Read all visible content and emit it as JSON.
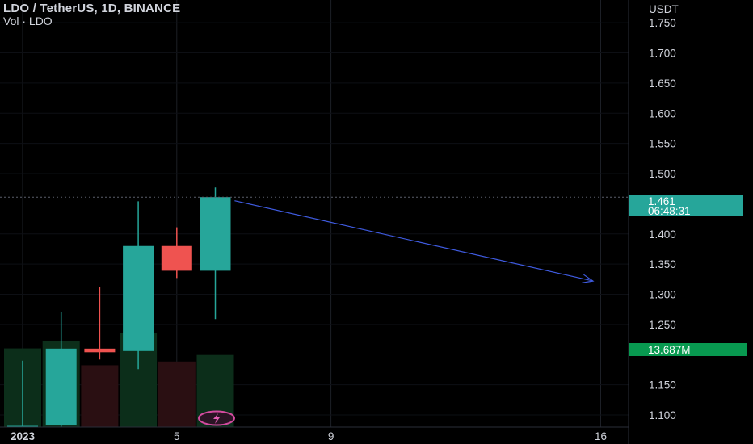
{
  "header": {
    "title": "LDO / TetherUS, 1D, BINANCE",
    "indicator": "Vol · LDO"
  },
  "colors": {
    "up": "#26a69a",
    "down": "#ef5350",
    "background": "#000000",
    "grid": "#1c1f26",
    "arrow": "#3f5be0",
    "volume_badge": "#089950"
  },
  "price_axis": {
    "label": "USDT"
  },
  "last_price": {
    "value": "1.461",
    "countdown": "06:48:31"
  },
  "volume_readout": {
    "value": "13.687M"
  },
  "event_icon": "flash-icon",
  "chart_data": {
    "type": "candlestick",
    "ylim": [
      1.08,
      1.785
    ],
    "y_ticks": [
      "1.750",
      "1.700",
      "1.650",
      "1.600",
      "1.550",
      "1.500",
      "1.400",
      "1.350",
      "1.300",
      "1.250",
      "1.150",
      "1.100"
    ],
    "x_ticks": [
      {
        "label": "2023",
        "index": 0
      },
      {
        "label": "5",
        "index": 4
      },
      {
        "label": "9",
        "index": 8
      },
      {
        "label": "16",
        "index": 15
      }
    ],
    "candles": [
      {
        "open": 1.08,
        "high": 1.19,
        "low": 1.08,
        "close": 1.082,
        "volume": 0.84
      },
      {
        "open": 1.083,
        "high": 1.27,
        "low": 1.08,
        "close": 1.21,
        "volume": 0.92
      },
      {
        "open": 1.21,
        "high": 1.312,
        "low": 1.192,
        "close": 1.204,
        "volume": 0.66
      },
      {
        "open": 1.206,
        "high": 1.454,
        "low": 1.176,
        "close": 1.38,
        "volume": 1.0
      },
      {
        "open": 1.38,
        "high": 1.411,
        "low": 1.327,
        "close": 1.339,
        "volume": 0.7
      },
      {
        "open": 1.339,
        "high": 1.477,
        "low": 1.259,
        "close": 1.461,
        "volume": 0.77
      }
    ],
    "volume_up_color": "#0c2e1a",
    "volume_down_color": "#2a0f12",
    "annotation": {
      "type": "arrow",
      "from": {
        "index": 5.5,
        "price": 1.455
      },
      "to": {
        "index": 14.8,
        "price": 1.322
      }
    }
  }
}
